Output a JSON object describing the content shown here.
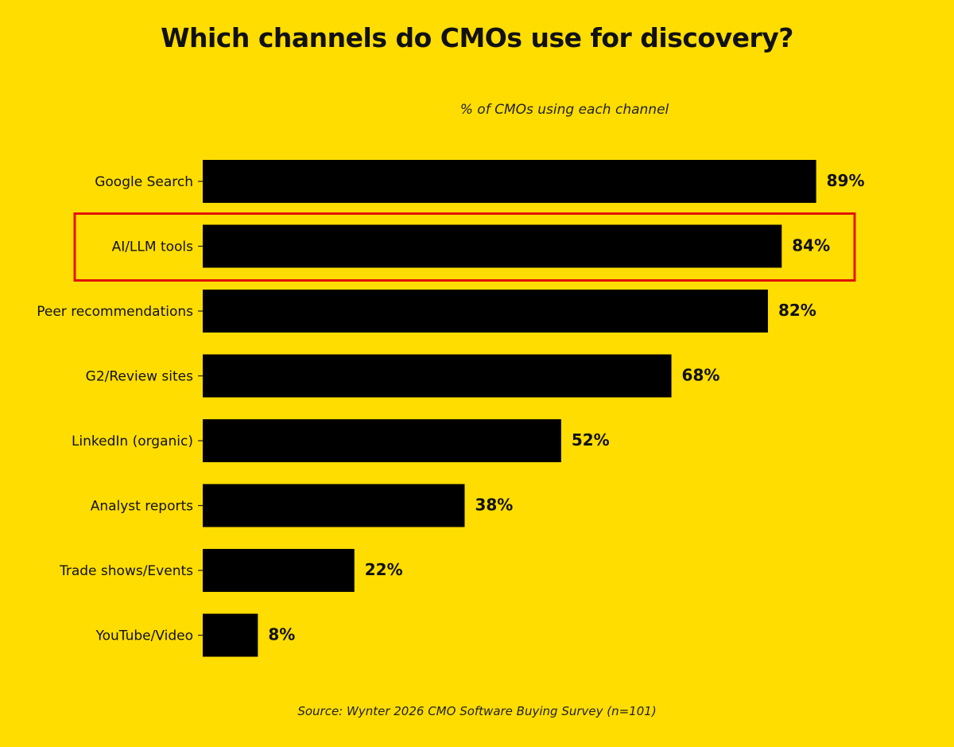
{
  "chart_data": {
    "type": "bar",
    "orientation": "horizontal",
    "title": "Which channels do CMOs use for discovery?",
    "subtitle": "% of CMOs using each channel",
    "xlabel": "",
    "ylabel": "",
    "xlim": [
      0,
      100
    ],
    "grid": false,
    "categories": [
      "Google Search",
      "AI/LLM tools",
      "Peer recommendations",
      "G2/Review sites",
      "LinkedIn (organic)",
      "Analyst reports",
      "Trade shows/Events",
      "YouTube/Video"
    ],
    "values": [
      89,
      84,
      82,
      68,
      52,
      38,
      22,
      8
    ],
    "value_labels": [
      "89%",
      "84%",
      "82%",
      "68%",
      "52%",
      "38%",
      "22%",
      "8%"
    ],
    "highlighted_category": "AI/LLM tools",
    "source": "Source: Wynter 2026 CMO Software Buying Survey (n=101)"
  },
  "colors": {
    "background": "#FFDD00",
    "bar": "#000000",
    "highlight": "#E3120B",
    "text": "#111111"
  }
}
